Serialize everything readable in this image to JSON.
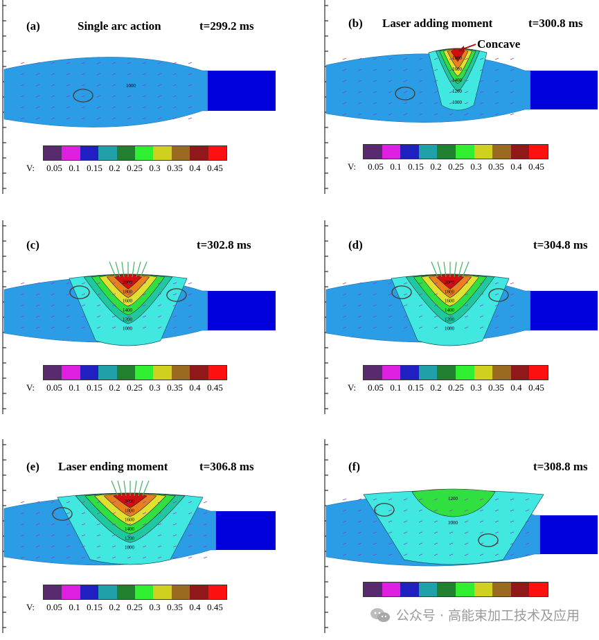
{
  "panels": [
    {
      "tag": "(a)",
      "title": "Single arc action",
      "time": "t=299.2 ms",
      "stage": 0,
      "contours": [
        "1000"
      ]
    },
    {
      "tag": "(b)",
      "title": "Laser adding moment",
      "time": "t=300.8 ms",
      "stage": 1,
      "contours": [
        "1800",
        "1600",
        "1400",
        "1200",
        "1000"
      ],
      "callout": "Concave"
    },
    {
      "tag": "(c)",
      "title": "",
      "time": "t=302.8 ms",
      "stage": 2,
      "contours": [
        "2000",
        "1800",
        "1600",
        "1400",
        "1200",
        "1000"
      ]
    },
    {
      "tag": "(d)",
      "title": "",
      "time": "t=304.8 ms",
      "stage": 2,
      "contours": [
        "2000",
        "1800",
        "1600",
        "1400",
        "1200",
        "1000"
      ]
    },
    {
      "tag": "(e)",
      "title": "Laser ending moment",
      "time": "t=306.8 ms",
      "stage": 3,
      "contours": [
        "2000",
        "1800",
        "1600",
        "1400",
        "1200",
        "1000"
      ]
    },
    {
      "tag": "(f)",
      "title": "",
      "time": "t=308.8 ms",
      "stage": 4,
      "contours": [
        "1200",
        "1000"
      ]
    }
  ],
  "legend": {
    "prefix": "V:",
    "values": [
      "0.05",
      "0.1",
      "0.15",
      "0.2",
      "0.25",
      "0.3",
      "0.35",
      "0.4",
      "0.45"
    ],
    "colors": [
      "#5a2a6e",
      "#e020e0",
      "#2020c0",
      "#20a0a8",
      "#208030",
      "#30ee30",
      "#d0d020",
      "#9a6a20",
      "#901818",
      "#ff1010"
    ]
  },
  "colors": {
    "pool": "#2a9de6",
    "solid": "#0000dd",
    "iso_light": "#40e8e0",
    "iso_mid": "#20c8a0",
    "iso_green": "#30e040",
    "iso_yellow": "#e0e030",
    "iso_orange": "#e88020",
    "iso_red": "#d01010",
    "callout_arrow": "#a01010"
  },
  "watermark": "公众号 · 高能束加工技术及应用"
}
